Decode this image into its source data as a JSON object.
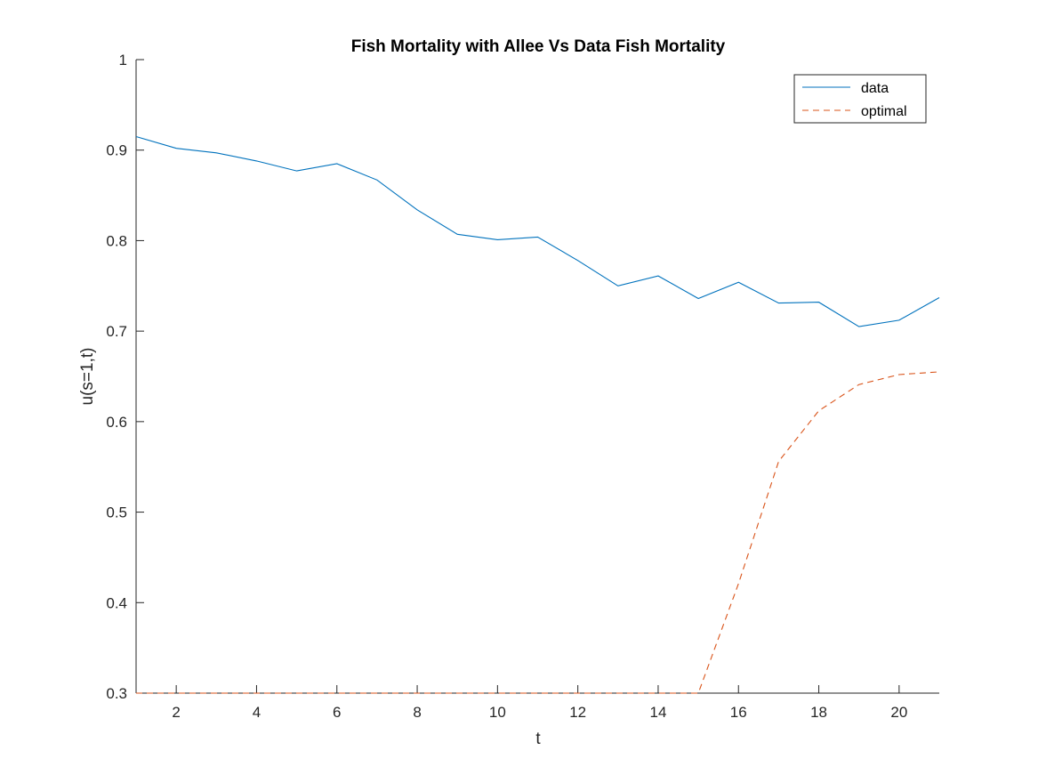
{
  "chart_data": {
    "type": "line",
    "title": "Fish Mortality with Allee Vs Data Fish Mortality",
    "xlabel": "t",
    "ylabel": "u(s=1,t)",
    "xlim": [
      1,
      21
    ],
    "ylim": [
      0.3,
      1.0
    ],
    "xticks": [
      2,
      4,
      6,
      8,
      10,
      12,
      14,
      16,
      18,
      20
    ],
    "yticks": [
      0.3,
      0.4,
      0.5,
      0.6,
      0.7,
      0.8,
      0.9,
      1.0
    ],
    "ytick_labels": [
      "0.3",
      "0.4",
      "0.5",
      "0.6",
      "0.7",
      "0.8",
      "0.9",
      "1"
    ],
    "grid": false,
    "legend_position": "top-right",
    "x": [
      1,
      2,
      3,
      4,
      5,
      6,
      7,
      8,
      9,
      10,
      11,
      12,
      13,
      14,
      15,
      16,
      17,
      18,
      19,
      20,
      21
    ],
    "series": [
      {
        "name": "data",
        "color": "#0072BD",
        "style": "solid",
        "values": [
          0.915,
          0.902,
          0.897,
          0.888,
          0.877,
          0.885,
          0.867,
          0.834,
          0.807,
          0.801,
          0.804,
          0.778,
          0.75,
          0.761,
          0.736,
          0.754,
          0.731,
          0.732,
          0.705,
          0.712,
          0.737
        ]
      },
      {
        "name": "optimal",
        "color": "#D95319",
        "style": "dashed",
        "values": [
          0.3,
          0.3,
          0.3,
          0.3,
          0.3,
          0.3,
          0.3,
          0.3,
          0.3,
          0.3,
          0.3,
          0.3,
          0.3,
          0.3,
          0.3,
          0.421,
          0.556,
          0.612,
          0.641,
          0.652,
          0.655
        ]
      }
    ]
  }
}
